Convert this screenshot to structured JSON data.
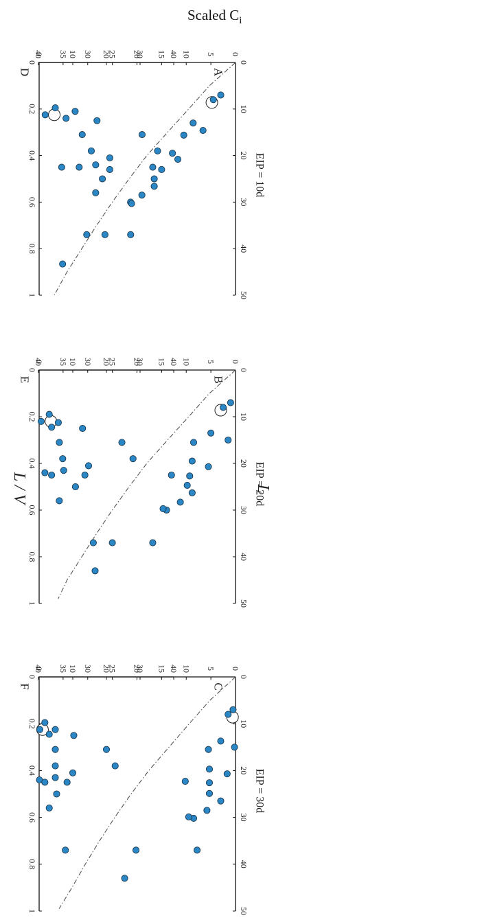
{
  "figure": {
    "ylabel_main": "Scaled C",
    "ylabel_sub": "i"
  },
  "columns": [
    {
      "eip_label": "EIP = 10d"
    },
    {
      "eip_label": "EIP = 20d"
    },
    {
      "eip_label": "EIP = 30d"
    }
  ],
  "x_axis_labels": {
    "top": "L",
    "bottom": "L / V"
  },
  "marker_fill": "#2a86c4",
  "chart_data": [
    {
      "type": "scatter",
      "panel": "A",
      "xlim": [
        0,
        50
      ],
      "ylim": [
        0,
        40
      ],
      "xticks": [
        "0",
        "10",
        "20",
        "30",
        "40",
        "50"
      ],
      "yticks": [
        "0",
        "5",
        "10",
        "15",
        "20",
        "25",
        "30",
        "35",
        "40"
      ],
      "reference_curve": {
        "style": "dash-dot",
        "x": [
          0,
          5,
          10,
          15,
          20,
          25,
          30,
          35,
          40,
          45,
          50
        ],
        "y": [
          0,
          5.3,
          9.5,
          13.8,
          18,
          21.6,
          25,
          28.2,
          31.2,
          34.2,
          36.8
        ]
      },
      "open_point": {
        "x": 8.6,
        "y": 4.8
      },
      "points": [
        {
          "x": 7.0,
          "y": 3.0
        },
        {
          "x": 8.0,
          "y": 4.5
        },
        {
          "x": 13.0,
          "y": 8.6
        },
        {
          "x": 14.6,
          "y": 6.6
        },
        {
          "x": 15.6,
          "y": 10.5
        },
        {
          "x": 19.5,
          "y": 12.8
        },
        {
          "x": 20.8,
          "y": 11.7
        },
        {
          "x": 22.5,
          "y": 16.8
        },
        {
          "x": 23.0,
          "y": 15.0
        },
        {
          "x": 25.0,
          "y": 16.5
        },
        {
          "x": 26.6,
          "y": 16.5
        },
        {
          "x": 28.5,
          "y": 19.0
        },
        {
          "x": 30.0,
          "y": 21.3
        },
        {
          "x": 30.3,
          "y": 21.1
        },
        {
          "x": 37.0,
          "y": 26.5
        },
        {
          "x": 37.0,
          "y": 30.2
        },
        {
          "x": 43.3,
          "y": 35.1
        }
      ]
    },
    {
      "type": "scatter",
      "panel": "B",
      "xlim": [
        0,
        50
      ],
      "ylim": [
        0,
        40
      ],
      "xticks": [
        "0",
        "10",
        "20",
        "30",
        "40",
        "50"
      ],
      "yticks": [
        "0",
        "5",
        "10",
        "15",
        "20",
        "25",
        "30",
        "35",
        "40"
      ],
      "reference_curve": {
        "style": "dash-dot",
        "x": [
          0,
          5,
          10,
          15,
          20,
          25,
          30,
          35,
          40,
          45,
          49
        ],
        "y": [
          0,
          5.3,
          9.5,
          13.8,
          18,
          21.6,
          25,
          28.2,
          31.2,
          34.2,
          36.0
        ]
      },
      "open_point": {
        "x": 8.6,
        "y": 3.0
      },
      "points": [
        {
          "x": 7.0,
          "y": 1.0
        },
        {
          "x": 8.0,
          "y": 2.5
        },
        {
          "x": 13.5,
          "y": 5.0
        },
        {
          "x": 15.0,
          "y": 1.5
        },
        {
          "x": 15.5,
          "y": 8.5
        },
        {
          "x": 19.5,
          "y": 8.8
        },
        {
          "x": 20.7,
          "y": 5.5
        },
        {
          "x": 22.7,
          "y": 9.3
        },
        {
          "x": 22.5,
          "y": 13.0
        },
        {
          "x": 24.7,
          "y": 9.8
        },
        {
          "x": 26.3,
          "y": 8.8
        },
        {
          "x": 28.3,
          "y": 11.2
        },
        {
          "x": 30.0,
          "y": 14.0
        },
        {
          "x": 29.7,
          "y": 14.7
        },
        {
          "x": 37.0,
          "y": 16.8
        },
        {
          "x": 37.0,
          "y": 25.0
        },
        {
          "x": 43.0,
          "y": 28.5
        }
      ]
    },
    {
      "type": "scatter",
      "panel": "C",
      "xlim": [
        0,
        50
      ],
      "ylim": [
        0,
        40
      ],
      "xticks": [
        "0",
        "10",
        "20",
        "30",
        "40",
        "50"
      ],
      "yticks": [
        "0",
        "5",
        "10",
        "15",
        "20",
        "25",
        "30",
        "35",
        "40"
      ],
      "reference_curve": {
        "style": "dash-dot",
        "x": [
          0,
          5,
          10,
          15,
          20,
          25,
          30,
          35,
          40,
          45,
          49.5
        ],
        "y": [
          0,
          5.2,
          9.4,
          13.5,
          17.6,
          21.2,
          24.5,
          27.6,
          30.5,
          33.2,
          35.8
        ]
      },
      "open_point": {
        "x": 8.6,
        "y": 0.6
      },
      "points": [
        {
          "x": 7.0,
          "y": 0.5
        },
        {
          "x": 8.0,
          "y": 1.5
        },
        {
          "x": 13.7,
          "y": 3.0
        },
        {
          "x": 15.0,
          "y": 0.2
        },
        {
          "x": 15.5,
          "y": 5.5
        },
        {
          "x": 19.7,
          "y": 5.3
        },
        {
          "x": 20.7,
          "y": 1.7
        },
        {
          "x": 22.6,
          "y": 5.3
        },
        {
          "x": 22.3,
          "y": 10.2
        },
        {
          "x": 24.9,
          "y": 5.3
        },
        {
          "x": 26.5,
          "y": 3.0
        },
        {
          "x": 28.5,
          "y": 5.8
        },
        {
          "x": 30.2,
          "y": 8.5
        },
        {
          "x": 29.9,
          "y": 9.5
        },
        {
          "x": 37.0,
          "y": 7.8
        },
        {
          "x": 37.0,
          "y": 20.2
        },
        {
          "x": 43.0,
          "y": 22.5
        }
      ]
    },
    {
      "type": "scatter",
      "panel": "D",
      "xlim": [
        0,
        1
      ],
      "ylim": [
        0,
        40
      ],
      "xticks": [
        "0",
        "0.2",
        "0.4",
        "0.6",
        "0.8",
        "1"
      ],
      "yticks": [
        "0",
        "10",
        "20",
        "30",
        "40"
      ],
      "open_point": {
        "x": 0.225,
        "y": 4.5
      },
      "points": [
        {
          "x": 0.195,
          "y": 4.8
        },
        {
          "x": 0.225,
          "y": 1.8
        },
        {
          "x": 0.21,
          "y": 10.7
        },
        {
          "x": 0.24,
          "y": 8.0
        },
        {
          "x": 0.25,
          "y": 17.2
        },
        {
          "x": 0.31,
          "y": 12.8
        },
        {
          "x": 0.31,
          "y": 30.6
        },
        {
          "x": 0.38,
          "y": 15.5
        },
        {
          "x": 0.38,
          "y": 35.2
        },
        {
          "x": 0.41,
          "y": 21.0
        },
        {
          "x": 0.44,
          "y": 16.8
        },
        {
          "x": 0.45,
          "y": 6.7
        },
        {
          "x": 0.45,
          "y": 11.9
        },
        {
          "x": 0.46,
          "y": 21.0
        },
        {
          "x": 0.5,
          "y": 18.8
        },
        {
          "x": 0.56,
          "y": 16.8
        },
        {
          "x": 0.74,
          "y": 27.2
        }
      ]
    },
    {
      "type": "scatter",
      "panel": "E",
      "xlim": [
        0,
        1
      ],
      "ylim": [
        0,
        40
      ],
      "xticks": [
        "0",
        "0.2",
        "0.4",
        "0.6",
        "0.8",
        "1"
      ],
      "yticks": [
        "0",
        "10",
        "20",
        "30",
        "40"
      ],
      "open_point": {
        "x": 0.22,
        "y": 3.5
      },
      "points": [
        {
          "x": 0.19,
          "y": 3.0
        },
        {
          "x": 0.22,
          "y": 0.6
        },
        {
          "x": 0.225,
          "y": 5.7
        },
        {
          "x": 0.245,
          "y": 3.7
        },
        {
          "x": 0.25,
          "y": 12.9
        },
        {
          "x": 0.31,
          "y": 6.0
        },
        {
          "x": 0.31,
          "y": 24.6
        },
        {
          "x": 0.38,
          "y": 7.0
        },
        {
          "x": 0.38,
          "y": 27.9
        },
        {
          "x": 0.41,
          "y": 14.7
        },
        {
          "x": 0.43,
          "y": 7.3
        },
        {
          "x": 0.44,
          "y": 1.7
        },
        {
          "x": 0.45,
          "y": 3.7
        },
        {
          "x": 0.45,
          "y": 13.6
        },
        {
          "x": 0.5,
          "y": 10.8
        },
        {
          "x": 0.56,
          "y": 6.0
        },
        {
          "x": 0.74,
          "y": 16.1
        }
      ]
    },
    {
      "type": "scatter",
      "panel": "F",
      "xlim": [
        0,
        1
      ],
      "ylim": [
        0,
        40
      ],
      "xticks": [
        "0",
        "0.2",
        "0.4",
        "0.6",
        "0.8",
        "1"
      ],
      "yticks": [
        "0",
        "10",
        "20",
        "30",
        "40"
      ],
      "open_point": {
        "x": 0.225,
        "y": 1.0
      },
      "points": [
        {
          "x": 0.195,
          "y": 1.7
        },
        {
          "x": 0.225,
          "y": 0.2
        },
        {
          "x": 0.225,
          "y": 4.8
        },
        {
          "x": 0.245,
          "y": 3.0
        },
        {
          "x": 0.25,
          "y": 10.3
        },
        {
          "x": 0.31,
          "y": 4.8
        },
        {
          "x": 0.31,
          "y": 20.0
        },
        {
          "x": 0.38,
          "y": 4.8
        },
        {
          "x": 0.38,
          "y": 22.6
        },
        {
          "x": 0.41,
          "y": 10.0
        },
        {
          "x": 0.43,
          "y": 4.8
        },
        {
          "x": 0.44,
          "y": 0.1
        },
        {
          "x": 0.45,
          "y": 1.7
        },
        {
          "x": 0.45,
          "y": 8.3
        },
        {
          "x": 0.5,
          "y": 5.2
        },
        {
          "x": 0.56,
          "y": 3.0
        },
        {
          "x": 0.74,
          "y": 7.8
        }
      ]
    }
  ]
}
